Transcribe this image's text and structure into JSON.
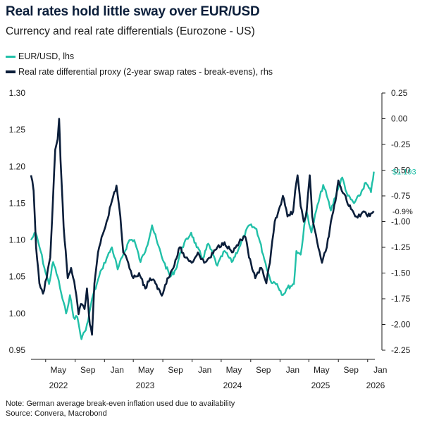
{
  "header": {
    "title": "Real rates hold little sway over EUR/USD",
    "subtitle": "Currency and real rate differentials (Eurozone - US)"
  },
  "colors": {
    "eurusd": "#21c0a8",
    "real_rate": "#0b1e3a"
  },
  "chart_data": {
    "type": "line",
    "legend_position": "top-left",
    "grid": false,
    "x_range": [
      "2022-03-01",
      "2026-01-31"
    ],
    "x_month_ticks": [
      "May",
      "Sep",
      "Jan",
      "May",
      "Sep",
      "Jan",
      "May",
      "Sep",
      "Jan",
      "May",
      "Sep",
      "Jan"
    ],
    "x_year_labels": [
      "2022",
      "2023",
      "2024",
      "2025",
      "2026"
    ],
    "y_left": {
      "label": "lhs",
      "ylim": [
        0.95,
        1.3
      ],
      "ticks": [
        "1.30",
        "1.25",
        "1.20",
        "1.15",
        "1.10",
        "1.05",
        "1.00",
        "0.95"
      ]
    },
    "y_right": {
      "label": "rhs",
      "ylim": [
        -2.25,
        0.25
      ],
      "ticks": [
        "0.25",
        "0.00",
        "-0.25",
        "-0.50",
        "-0.75",
        "-1.00",
        "-1.25",
        "-1.50",
        "-1.75",
        "-2.00",
        "-2.25"
      ]
    },
    "series": [
      {
        "name": "EUR/USD, lhs",
        "axis": "left",
        "points": [
          [
            "2022-03-01",
            1.1
          ],
          [
            "2022-03-20",
            1.11
          ],
          [
            "2022-04-10",
            1.085
          ],
          [
            "2022-05-01",
            1.055
          ],
          [
            "2022-05-15",
            1.04
          ],
          [
            "2022-06-01",
            1.07
          ],
          [
            "2022-06-20",
            1.05
          ],
          [
            "2022-07-10",
            1.02
          ],
          [
            "2022-07-25",
            1.0
          ],
          [
            "2022-08-10",
            1.025
          ],
          [
            "2022-08-25",
            0.995
          ],
          [
            "2022-09-10",
            0.995
          ],
          [
            "2022-09-27",
            0.965
          ],
          [
            "2022-10-10",
            0.975
          ],
          [
            "2022-10-25",
            0.99
          ],
          [
            "2022-11-10",
            1.02
          ],
          [
            "2022-11-30",
            1.04
          ],
          [
            "2022-12-20",
            1.06
          ],
          [
            "2023-01-10",
            1.075
          ],
          [
            "2023-02-01",
            1.09
          ],
          [
            "2023-02-25",
            1.06
          ],
          [
            "2023-03-20",
            1.08
          ],
          [
            "2023-04-15",
            1.1
          ],
          [
            "2023-05-05",
            1.1
          ],
          [
            "2023-05-31",
            1.07
          ],
          [
            "2023-06-25",
            1.09
          ],
          [
            "2023-07-18",
            1.12
          ],
          [
            "2023-08-10",
            1.095
          ],
          [
            "2023-09-05",
            1.07
          ],
          [
            "2023-10-03",
            1.05
          ],
          [
            "2023-10-25",
            1.06
          ],
          [
            "2023-11-20",
            1.09
          ],
          [
            "2023-12-28",
            1.11
          ],
          [
            "2024-01-20",
            1.09
          ],
          [
            "2024-02-15",
            1.075
          ],
          [
            "2024-03-08",
            1.095
          ],
          [
            "2024-04-15",
            1.065
          ],
          [
            "2024-05-15",
            1.085
          ],
          [
            "2024-06-14",
            1.07
          ],
          [
            "2024-07-15",
            1.09
          ],
          [
            "2024-08-25",
            1.12
          ],
          [
            "2024-09-25",
            1.115
          ],
          [
            "2024-10-23",
            1.08
          ],
          [
            "2024-11-22",
            1.045
          ],
          [
            "2024-12-20",
            1.04
          ],
          [
            "2025-01-13",
            1.025
          ],
          [
            "2025-02-01",
            1.035
          ],
          [
            "2025-02-28",
            1.04
          ],
          [
            "2025-03-10",
            1.085
          ],
          [
            "2025-03-28",
            1.08
          ],
          [
            "2025-04-21",
            1.14
          ],
          [
            "2025-05-12",
            1.11
          ],
          [
            "2025-06-01",
            1.14
          ],
          [
            "2025-06-30",
            1.175
          ],
          [
            "2025-07-15",
            1.16
          ],
          [
            "2025-08-01",
            1.14
          ],
          [
            "2025-08-25",
            1.165
          ],
          [
            "2025-09-17",
            1.185
          ],
          [
            "2025-10-10",
            1.16
          ],
          [
            "2025-11-05",
            1.15
          ],
          [
            "2025-11-28",
            1.16
          ],
          [
            "2025-12-24",
            1.178
          ],
          [
            "2026-01-15",
            1.165
          ],
          [
            "2026-01-27",
            1.193
          ]
        ]
      },
      {
        "name": "Real rate differential proxy (2-year swap rates - break-evens), rhs",
        "axis": "right",
        "points": [
          [
            "2022-03-01",
            -0.55
          ],
          [
            "2022-03-12",
            -0.7
          ],
          [
            "2022-03-22",
            -1.25
          ],
          [
            "2022-04-05",
            -1.6
          ],
          [
            "2022-04-20",
            -1.7
          ],
          [
            "2022-05-05",
            -1.55
          ],
          [
            "2022-05-20",
            -1.35
          ],
          [
            "2022-06-01",
            -0.75
          ],
          [
            "2022-06-10",
            -0.3
          ],
          [
            "2022-06-20",
            -0.2
          ],
          [
            "2022-06-26",
            0.0
          ],
          [
            "2022-07-02",
            -0.4
          ],
          [
            "2022-07-15",
            -1.05
          ],
          [
            "2022-08-01",
            -1.55
          ],
          [
            "2022-08-15",
            -1.45
          ],
          [
            "2022-09-01",
            -1.65
          ],
          [
            "2022-09-15",
            -1.9
          ],
          [
            "2022-09-25",
            -1.8
          ],
          [
            "2022-10-10",
            -1.85
          ],
          [
            "2022-10-20",
            -1.65
          ],
          [
            "2022-11-01",
            -2.0
          ],
          [
            "2022-11-10",
            -2.1
          ],
          [
            "2022-11-20",
            -1.6
          ],
          [
            "2022-12-05",
            -1.3
          ],
          [
            "2022-12-20",
            -1.15
          ],
          [
            "2023-01-10",
            -1.0
          ],
          [
            "2023-02-01",
            -0.8
          ],
          [
            "2023-02-20",
            -0.65
          ],
          [
            "2023-03-08",
            -0.95
          ],
          [
            "2023-03-20",
            -1.3
          ],
          [
            "2023-04-10",
            -1.4
          ],
          [
            "2023-05-01",
            -1.55
          ],
          [
            "2023-05-25",
            -1.5
          ],
          [
            "2023-06-20",
            -1.65
          ],
          [
            "2023-07-10",
            -1.55
          ],
          [
            "2023-08-01",
            -1.6
          ],
          [
            "2023-08-28",
            -1.72
          ],
          [
            "2023-09-20",
            -1.55
          ],
          [
            "2023-10-15",
            -1.45
          ],
          [
            "2023-11-10",
            -1.25
          ],
          [
            "2023-12-05",
            -1.35
          ],
          [
            "2023-12-30",
            -1.4
          ],
          [
            "2024-01-25",
            -1.3
          ],
          [
            "2024-02-20",
            -1.4
          ],
          [
            "2024-03-15",
            -1.35
          ],
          [
            "2024-04-15",
            -1.25
          ],
          [
            "2024-05-15",
            -1.2
          ],
          [
            "2024-06-15",
            -1.3
          ],
          [
            "2024-07-15",
            -1.2
          ],
          [
            "2024-08-10",
            -1.15
          ],
          [
            "2024-08-25",
            -1.35
          ],
          [
            "2024-09-20",
            -1.55
          ],
          [
            "2024-10-15",
            -1.45
          ],
          [
            "2024-11-05",
            -1.6
          ],
          [
            "2024-11-20",
            -1.4
          ],
          [
            "2024-12-10",
            -1.0
          ],
          [
            "2025-01-01",
            -0.85
          ],
          [
            "2025-01-13",
            -0.75
          ],
          [
            "2025-02-01",
            -0.95
          ],
          [
            "2025-02-25",
            -0.9
          ],
          [
            "2025-03-05",
            -0.7
          ],
          [
            "2025-03-15",
            -0.55
          ],
          [
            "2025-03-28",
            -0.85
          ],
          [
            "2025-04-10",
            -1.0
          ],
          [
            "2025-04-22",
            -0.9
          ],
          [
            "2025-05-05",
            -0.55
          ],
          [
            "2025-05-15",
            -0.95
          ],
          [
            "2025-06-05",
            -1.2
          ],
          [
            "2025-06-25",
            -1.4
          ],
          [
            "2025-07-15",
            -1.25
          ],
          [
            "2025-08-01",
            -1.0
          ],
          [
            "2025-08-20",
            -0.8
          ],
          [
            "2025-09-01",
            -0.6
          ],
          [
            "2025-09-15",
            -0.7
          ],
          [
            "2025-10-01",
            -0.75
          ],
          [
            "2025-10-15",
            -0.85
          ],
          [
            "2025-11-01",
            -0.9
          ],
          [
            "2025-11-15",
            -0.95
          ],
          [
            "2025-12-01",
            -0.95
          ],
          [
            "2025-12-15",
            -0.9
          ],
          [
            "2026-01-01",
            -0.95
          ],
          [
            "2026-01-15",
            -0.92
          ],
          [
            "2026-01-27",
            -0.9
          ]
        ]
      }
    ],
    "annotations": [
      {
        "text": "$1.193",
        "series": 0
      },
      {
        "text": "-0.9%",
        "series": 1
      }
    ],
    "footnotes": [
      "Note: German average break-even inflation used due to availability",
      "Source: Convera, Macrobond"
    ]
  }
}
